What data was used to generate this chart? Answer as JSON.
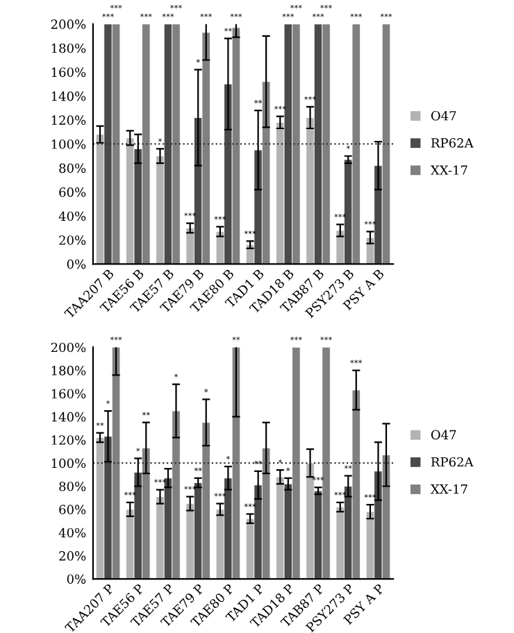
{
  "chart_data": [
    {
      "type": "bar",
      "categories": [
        "TAA207 B",
        "TAE56 B",
        "TAE57 B",
        "TAE79 B",
        "TAE80 B",
        "TAD1 B",
        "TAD18 B",
        "TAB87 B",
        "PSY273 B",
        "PSY A B"
      ],
      "series": [
        {
          "name": "O47",
          "color": "#b3b3b3",
          "values": [
            108,
            105,
            90,
            30,
            27,
            16,
            118,
            122,
            28,
            22
          ],
          "errors": [
            7,
            6,
            6,
            4,
            4,
            3,
            5,
            9,
            5,
            5
          ]
        },
        {
          "name": "RP62A",
          "color": "#4a4a4a",
          "values": [
            200,
            96,
            200,
            122,
            150,
            95,
            200,
            200,
            87,
            82
          ],
          "errors": [
            null,
            12,
            null,
            40,
            38,
            33,
            null,
            null,
            3,
            20
          ]
        },
        {
          "name": "XX-17",
          "color": "#808080",
          "values": [
            200,
            200,
            200,
            193,
            197,
            152,
            200,
            200,
            200,
            200
          ],
          "errors": [
            null,
            null,
            null,
            23,
            8,
            38,
            null,
            null,
            null,
            null
          ]
        }
      ],
      "ylim": [
        0,
        200
      ],
      "yticks": [
        {
          "value": 0,
          "label": "0%"
        },
        {
          "value": 20,
          "label": "20%"
        },
        {
          "value": 40,
          "label": "40%"
        },
        {
          "value": 60,
          "label": "60%"
        },
        {
          "value": 80,
          "label": "80%"
        },
        {
          "value": 100,
          "label": "100%"
        },
        {
          "value": 120,
          "label": "120%"
        },
        {
          "value": 140,
          "label": "140%"
        },
        {
          "value": 160,
          "label": "160%"
        },
        {
          "value": 180,
          "label": "180%"
        },
        {
          "value": 200,
          "label": "200%"
        }
      ],
      "ref_lines": [
        {
          "axis": "y",
          "value": 100,
          "line_style": "dotted",
          "color": "#333333"
        }
      ],
      "legend": "right",
      "grid": false,
      "annotations": [
        {
          "text": "***",
          "x": "TAA207 B",
          "y": 200
        },
        {
          "text": "***",
          "x": "TAA207 B",
          "y": 200
        },
        {
          "text": "***",
          "x": "TAE56 B",
          "y": 200
        },
        {
          "text": "*",
          "x": "TAE57 B",
          "y": 96
        },
        {
          "text": "***",
          "x": "TAE57 B",
          "y": 200
        },
        {
          "text": "***",
          "x": "TAE57 B",
          "y": 200
        },
        {
          "text": "***",
          "x": "TAE79 B",
          "y": 34
        },
        {
          "text": "*",
          "x": "TAE79 B",
          "y": 162
        },
        {
          "text": "***",
          "x": "TAE79 B",
          "y": 200
        },
        {
          "text": "***",
          "x": "TAE80 B",
          "y": 31
        },
        {
          "text": "**",
          "x": "TAE80 B",
          "y": 188
        },
        {
          "text": "***",
          "x": "TAE80 B",
          "y": 200
        },
        {
          "text": "***",
          "x": "TAD1 B",
          "y": 19
        },
        {
          "text": "**",
          "x": "TAD1 B",
          "y": 128
        },
        {
          "text": "***",
          "x": "TAD18 B",
          "y": 123
        },
        {
          "text": "***",
          "x": "TAD18 B",
          "y": 200
        },
        {
          "text": "***",
          "x": "TAD18 B",
          "y": 200
        },
        {
          "text": "***",
          "x": "TAB87 B",
          "y": 131
        },
        {
          "text": "***",
          "x": "TAB87 B",
          "y": 200
        },
        {
          "text": "***",
          "x": "TAB87 B",
          "y": 200
        },
        {
          "text": "***",
          "x": "PSY273 B",
          "y": 33
        },
        {
          "text": "*",
          "x": "PSY273 B",
          "y": 90
        },
        {
          "text": "***",
          "x": "PSY273 B",
          "y": 200
        },
        {
          "text": "***",
          "x": "PSY A B",
          "y": 27
        },
        {
          "text": "***",
          "x": "PSY A B",
          "y": 200
        }
      ]
    },
    {
      "type": "bar",
      "categories": [
        "TAA207 P",
        "TAE56 P",
        "TAE57 P",
        "TAE79 P",
        "TAE80 P",
        "TAD1 P",
        "TAD18 P",
        "TAB87 P",
        "PSY273 P",
        "PSY A P"
      ],
      "series": [
        {
          "name": "O47",
          "color": "#b3b3b3",
          "values": [
            122,
            60,
            71,
            65,
            60,
            52,
            88,
            100,
            62,
            58
          ],
          "errors": [
            4,
            6,
            6,
            6,
            5,
            4,
            6,
            12,
            4,
            6
          ]
        },
        {
          "name": "RP62A",
          "color": "#4a4a4a",
          "values": [
            123,
            92,
            87,
            83,
            87,
            81,
            82,
            76,
            80,
            93
          ],
          "errors": [
            22,
            12,
            8,
            4,
            10,
            12,
            5,
            3,
            9,
            25
          ]
        },
        {
          "name": "XX-17",
          "color": "#808080",
          "values": [
            200,
            113,
            145,
            135,
            200,
            113,
            200,
            200,
            163,
            107
          ],
          "errors": [
            24,
            22,
            23,
            20,
            60,
            22,
            null,
            null,
            17,
            27
          ]
        }
      ],
      "ylim": [
        0,
        200
      ],
      "yticks": [
        {
          "value": 0,
          "label": "0%"
        },
        {
          "value": 20,
          "label": "20%"
        },
        {
          "value": 40,
          "label": "40%"
        },
        {
          "value": 60,
          "label": "60%"
        },
        {
          "value": 80,
          "label": "80%"
        },
        {
          "value": 100,
          "label": "100%"
        },
        {
          "value": 120,
          "label": "120%"
        },
        {
          "value": 140,
          "label": "140%"
        },
        {
          "value": 160,
          "label": "160%"
        },
        {
          "value": 180,
          "label": "180%"
        },
        {
          "value": 200,
          "label": "200%"
        }
      ],
      "ref_lines": [
        {
          "axis": "y",
          "value": 100,
          "line_style": "dotted",
          "color": "#333333"
        }
      ],
      "legend": "right",
      "grid": false,
      "annotations": [
        {
          "text": "**",
          "x": "TAA207 P",
          "y": 126
        },
        {
          "text": "*",
          "x": "TAA207 P",
          "y": 145
        },
        {
          "text": "***",
          "x": "TAA207 P",
          "y": 200
        },
        {
          "text": "***",
          "x": "TAE56 P",
          "y": 66
        },
        {
          "text": "*",
          "x": "TAE56 P",
          "y": 104
        },
        {
          "text": "**",
          "x": "TAE56 P",
          "y": 135
        },
        {
          "text": "***",
          "x": "TAE57 P",
          "y": 77
        },
        {
          "text": "*",
          "x": "TAE57 P",
          "y": 168
        },
        {
          "text": "***",
          "x": "TAE79 P",
          "y": 71
        },
        {
          "text": "**",
          "x": "TAE79 P",
          "y": 87
        },
        {
          "text": "*",
          "x": "TAE79 P",
          "y": 155
        },
        {
          "text": "***",
          "x": "TAE80 P",
          "y": 65
        },
        {
          "text": "*",
          "x": "TAE80 P",
          "y": 97
        },
        {
          "text": "**",
          "x": "TAE80 P",
          "y": 200
        },
        {
          "text": "***",
          "x": "TAD1 P",
          "y": 56
        },
        {
          "text": "**",
          "x": "TAD1 P",
          "y": 93
        },
        {
          "text": "*",
          "x": "TAD18 P",
          "y": 94
        },
        {
          "text": "*",
          "x": "TAD18 P",
          "y": 87
        },
        {
          "text": "***",
          "x": "TAD18 P",
          "y": 200
        },
        {
          "text": "***",
          "x": "TAB87 P",
          "y": 79
        },
        {
          "text": "***",
          "x": "TAB87 P",
          "y": 200
        },
        {
          "text": "***",
          "x": "PSY273 P",
          "y": 66
        },
        {
          "text": "**",
          "x": "PSY273 P",
          "y": 89
        },
        {
          "text": "***",
          "x": "PSY273 P",
          "y": 180
        },
        {
          "text": "***",
          "x": "PSY A P",
          "y": 64
        }
      ]
    }
  ]
}
